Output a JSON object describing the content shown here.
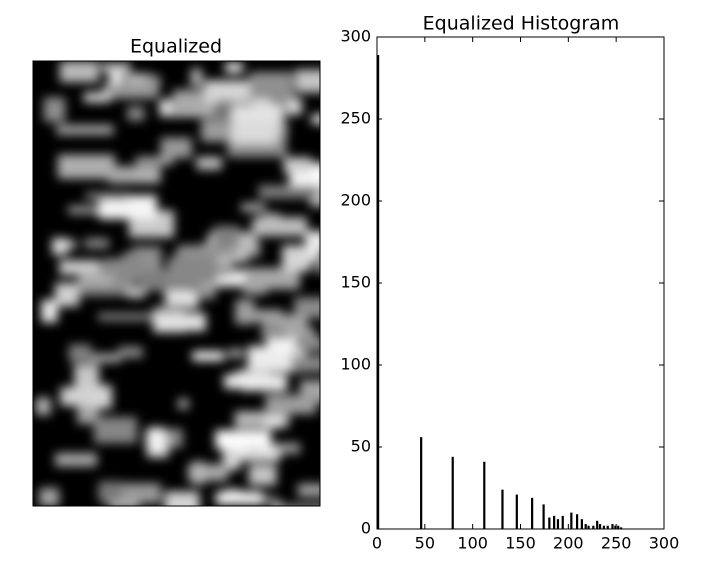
{
  "chart_data": [
    {
      "type": "image",
      "title": "Equalized"
    },
    {
      "type": "bar",
      "title": "Equalized Histogram",
      "x": [
        0,
        45,
        78,
        111,
        130,
        145,
        161,
        173,
        179,
        184,
        188,
        193,
        202,
        208,
        213,
        217,
        220,
        225,
        229,
        232,
        236,
        240,
        245,
        248,
        251,
        254
      ],
      "values": [
        289,
        56,
        44,
        41,
        24,
        21,
        19,
        15,
        7,
        8,
        6,
        8,
        10,
        9,
        6,
        3,
        2,
        2,
        5,
        3,
        2,
        2,
        3,
        2,
        2,
        1
      ],
      "color": "#000000",
      "xlim": [
        0,
        300
      ],
      "ylim": [
        0,
        300
      ],
      "xticks": [
        0,
        50,
        100,
        150,
        200,
        250,
        300
      ],
      "yticks": [
        0,
        50,
        100,
        150,
        200,
        250,
        300
      ]
    }
  ]
}
